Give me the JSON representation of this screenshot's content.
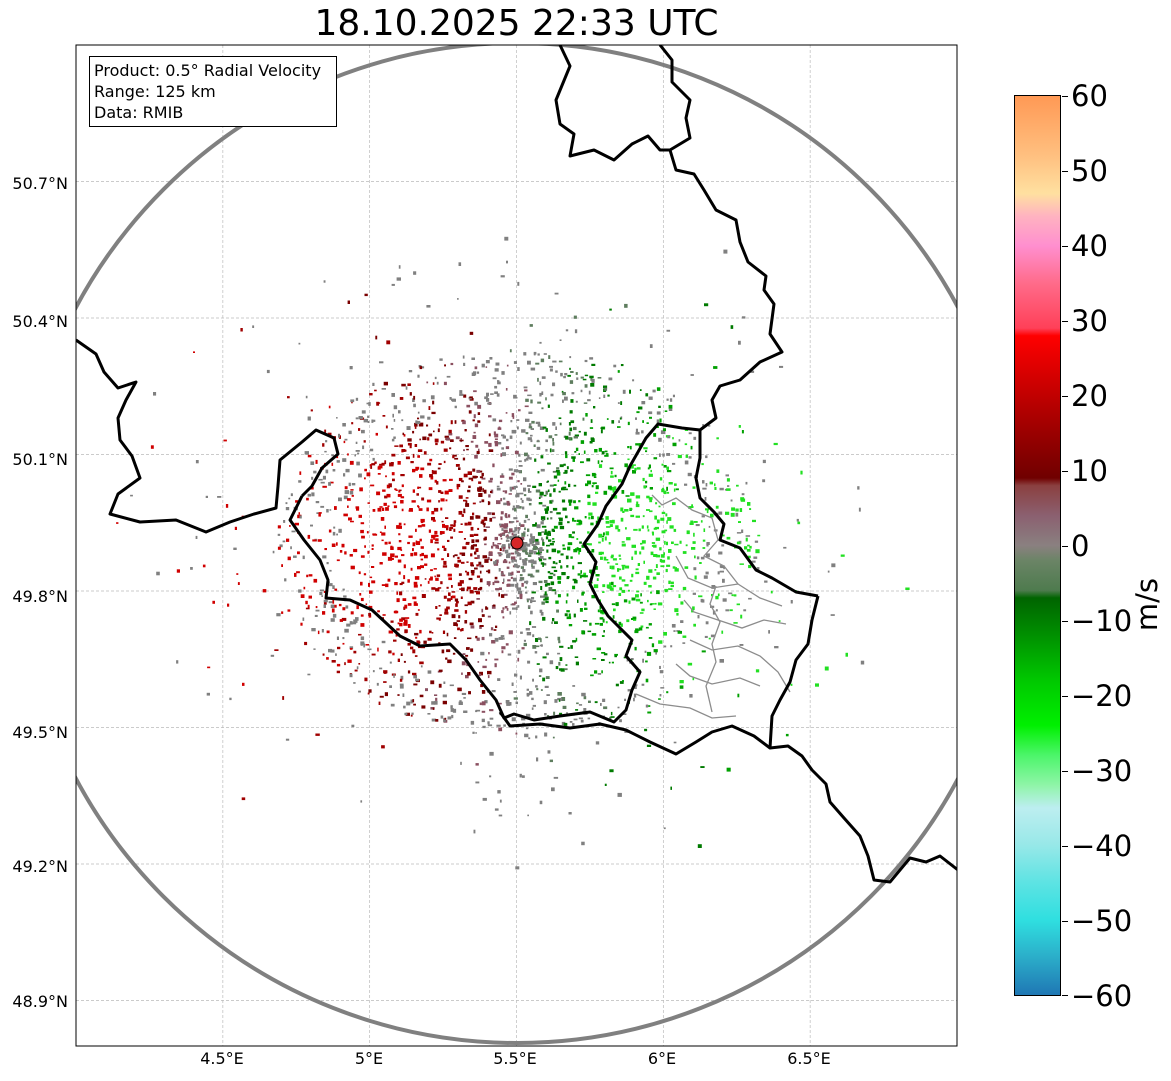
{
  "title": "18.10.2025 22:33 UTC",
  "info_box": {
    "product": "Product: 0.5° Radial Velocity",
    "range": "Range: 125 km",
    "source": "Data: RMIB"
  },
  "axes": {
    "lat_ticks": [
      "50.7°N",
      "50.4°N",
      "50.1°N",
      "49.8°N",
      "49.5°N",
      "49.2°N",
      "48.9°N"
    ],
    "lon_ticks": [
      "4.5°E",
      "5°E",
      "5.5°E",
      "6°E",
      "6.5°E"
    ],
    "lon_range": [
      4.0,
      7.0
    ],
    "lat_range": [
      48.8,
      51.0
    ],
    "lat_values": [
      50.7,
      50.4,
      50.1,
      49.8,
      49.5,
      49.2,
      48.9
    ],
    "lon_values": [
      4.5,
      5.0,
      5.5,
      6.0,
      6.5
    ]
  },
  "radar": {
    "lon": 5.51,
    "lat": 49.915,
    "range_km": 125,
    "marker_color": "#d62728"
  },
  "colorbar": {
    "label": "m/s",
    "min": -60,
    "max": 60,
    "tick_values": [
      60,
      50,
      40,
      30,
      20,
      10,
      0,
      -10,
      -20,
      -30,
      -40,
      -50,
      -60
    ],
    "tick_labels": [
      "60",
      "50",
      "40",
      "30",
      "20",
      "10",
      "0",
      "−10",
      "−20",
      "−30",
      "−40",
      "−50",
      "−60"
    ],
    "stops": [
      {
        "v": -60,
        "c": "#1f77b4"
      },
      {
        "v": -55,
        "c": "#2badc9"
      },
      {
        "v": -50,
        "c": "#2fdfe0"
      },
      {
        "v": -45,
        "c": "#5de3e3"
      },
      {
        "v": -40,
        "c": "#97e8e8"
      },
      {
        "v": -35,
        "c": "#bdeef0"
      },
      {
        "v": -32,
        "c": "#8ff5a8"
      },
      {
        "v": -28,
        "c": "#4cf56a"
      },
      {
        "v": -24,
        "c": "#00f000"
      },
      {
        "v": -18,
        "c": "#00c800"
      },
      {
        "v": -12,
        "c": "#009000"
      },
      {
        "v": -7,
        "c": "#006400"
      },
      {
        "v": -6,
        "c": "#4e7b4e"
      },
      {
        "v": -2,
        "c": "#6b8466"
      },
      {
        "v": 0,
        "c": "#8a8080"
      },
      {
        "v": 4,
        "c": "#8b6070"
      },
      {
        "v": 8,
        "c": "#8b4040"
      },
      {
        "v": 9,
        "c": "#700000"
      },
      {
        "v": 15,
        "c": "#9a0000"
      },
      {
        "v": 22,
        "c": "#d00000"
      },
      {
        "v": 28,
        "c": "#ff0000"
      },
      {
        "v": 29,
        "c": "#ff4058"
      },
      {
        "v": 35,
        "c": "#ff6b8a"
      },
      {
        "v": 40,
        "c": "#ff8fcf"
      },
      {
        "v": 44,
        "c": "#ffb3c0"
      },
      {
        "v": 47,
        "c": "#ffe0a0"
      },
      {
        "v": 52,
        "c": "#ffc080"
      },
      {
        "v": 60,
        "c": "#ff9955"
      }
    ]
  },
  "colors": {
    "border": "#000000",
    "range_ring": "#808080",
    "region_lines": "#8c8c8c",
    "grid": "#bbbbbb"
  },
  "echo_seed": 1729
}
